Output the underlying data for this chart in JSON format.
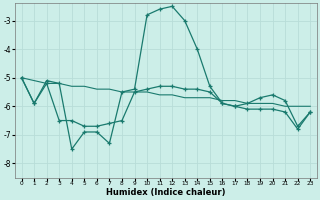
{
  "xlabel": "Humidex (Indice chaleur)",
  "bg_color": "#cceee8",
  "grid_color": "#b8ddd8",
  "line_color": "#1a7a6e",
  "xmin": -0.5,
  "xmax": 23.5,
  "ymin": -8.5,
  "ymax": -2.4,
  "yticks": [
    -8,
    -7,
    -6,
    -5,
    -4,
    -3
  ],
  "xticks": [
    0,
    1,
    2,
    3,
    4,
    5,
    6,
    7,
    8,
    9,
    10,
    11,
    12,
    13,
    14,
    15,
    16,
    17,
    18,
    19,
    20,
    21,
    22,
    23
  ],
  "line1_x": [
    0,
    1,
    2,
    3,
    4,
    5,
    6,
    7,
    8,
    9,
    10,
    11,
    12,
    13,
    14,
    15,
    16,
    17,
    18,
    19,
    20,
    21,
    22,
    23
  ],
  "line1_y": [
    -5.0,
    -5.9,
    -5.1,
    -5.2,
    -7.5,
    -6.9,
    -6.9,
    -7.3,
    -5.5,
    -5.4,
    -2.8,
    -2.6,
    -2.5,
    -3.0,
    -4.0,
    -5.3,
    -5.9,
    -6.0,
    -5.9,
    -5.7,
    -5.6,
    -5.8,
    -6.7,
    -6.2
  ],
  "line2_x": [
    0,
    1,
    2,
    3,
    4,
    5,
    6,
    7,
    8,
    9,
    10,
    11,
    12,
    13,
    14,
    15,
    16,
    17,
    18,
    19,
    20,
    21,
    22,
    23
  ],
  "line2_y": [
    -5.0,
    -5.1,
    -5.2,
    -5.2,
    -5.3,
    -5.3,
    -5.4,
    -5.4,
    -5.5,
    -5.5,
    -5.5,
    -5.6,
    -5.6,
    -5.7,
    -5.7,
    -5.7,
    -5.8,
    -5.8,
    -5.9,
    -5.9,
    -5.9,
    -6.0,
    -6.0,
    -6.0
  ],
  "line3_x": [
    0,
    1,
    2,
    3,
    4,
    5,
    6,
    7,
    8,
    9,
    10,
    11,
    12,
    13,
    14,
    15,
    16,
    17,
    18,
    19,
    20,
    21,
    22,
    23
  ],
  "line3_y": [
    -5.0,
    -5.9,
    -5.2,
    -6.5,
    -6.5,
    -6.7,
    -6.7,
    -6.6,
    -6.5,
    -5.5,
    -5.4,
    -5.3,
    -5.3,
    -5.4,
    -5.4,
    -5.5,
    -5.9,
    -6.0,
    -6.1,
    -6.1,
    -6.1,
    -6.2,
    -6.8,
    -6.2
  ]
}
